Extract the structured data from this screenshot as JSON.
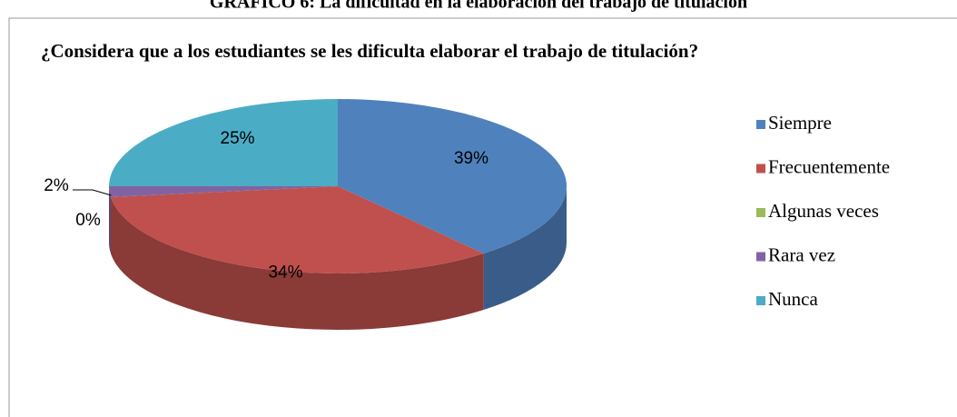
{
  "caption": "GRÁFICO 6: La dificultad en la elaboración del trabajo de titulación",
  "chart_data": {
    "type": "pie3d",
    "title": "¿Considera que  a los estudiantes se les dificulta elaborar el trabajo de titulación?",
    "categories": [
      "Siempre",
      "Frecuentemente",
      "Algunas veces",
      "Rara vez",
      "Nunca"
    ],
    "values": [
      39,
      34,
      0,
      2,
      25
    ],
    "value_labels": [
      "39%",
      "34%",
      "0%",
      "2%",
      "25%"
    ],
    "colors": [
      "#4f81bd",
      "#c0504d",
      "#9bbb59",
      "#8064a2",
      "#4bacc6"
    ],
    "legend": "right"
  }
}
